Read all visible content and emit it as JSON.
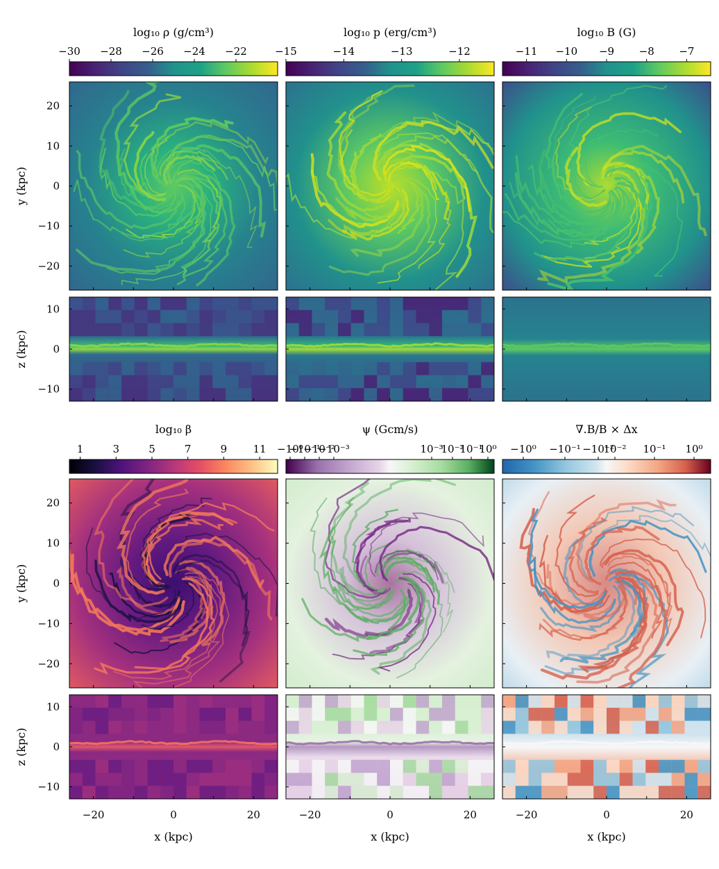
{
  "chart_data": [
    {
      "type": "heatmap",
      "panel": "top-left-face-on",
      "colorbar": {
        "title": "log₁₀ ρ (g/cm³)",
        "colormap": "viridis",
        "range": [
          -30,
          -20
        ],
        "ticks": [
          "−30",
          "−28",
          "−26",
          "−24",
          "−22"
        ],
        "tick_values": [
          -30,
          -28,
          -26,
          -24,
          -22
        ]
      },
      "ylabel": "y (kpc)",
      "xlim": [
        -26,
        26
      ],
      "ylim": [
        -26,
        26
      ],
      "yticks": [
        "20",
        "10",
        "0",
        "−10",
        "−20"
      ],
      "ytick_values": [
        20,
        10,
        0,
        -10,
        -20
      ]
    },
    {
      "type": "heatmap",
      "panel": "top-middle-face-on",
      "colorbar": {
        "title": "log₁₀ p (erg/cm³)",
        "colormap": "viridis",
        "range": [
          -15,
          -11.4
        ],
        "ticks": [
          "−15",
          "−14",
          "−13",
          "−12"
        ],
        "tick_values": [
          -15,
          -14,
          -13,
          -12
        ]
      },
      "xlim": [
        -26,
        26
      ],
      "ylim": [
        -26,
        26
      ]
    },
    {
      "type": "heatmap",
      "panel": "top-right-face-on",
      "colorbar": {
        "title": "log₁₀ B (G)",
        "colormap": "viridis",
        "range": [
          -11.6,
          -6.4
        ],
        "ticks": [
          "−11",
          "−10",
          "−9",
          "−8",
          "−7"
        ],
        "tick_values": [
          -11,
          -10,
          -9,
          -8,
          -7
        ]
      },
      "xlim": [
        -26,
        26
      ],
      "ylim": [
        -26,
        26
      ]
    },
    {
      "type": "heatmap",
      "panel": "row2-edge-on",
      "ylabel": "z (kpc)",
      "ylim": [
        -13,
        13
      ],
      "yticks": [
        "10",
        "0",
        "−10"
      ],
      "ytick_values": [
        10,
        0,
        -10
      ]
    },
    {
      "type": "heatmap",
      "panel": "bottom-left-face-on",
      "colorbar": {
        "title": "log₁₀ β",
        "colormap": "magma",
        "range": [
          0.4,
          12
        ],
        "ticks": [
          "1",
          "3",
          "5",
          "7",
          "9",
          "11"
        ],
        "tick_values": [
          1,
          3,
          5,
          7,
          9,
          11
        ]
      },
      "ylabel": "y (kpc)",
      "xlim": [
        -26,
        26
      ],
      "ylim": [
        -26,
        26
      ],
      "yticks": [
        "20",
        "10",
        "0",
        "−10",
        "−20"
      ],
      "ytick_values": [
        20,
        10,
        0,
        -10,
        -20
      ]
    },
    {
      "type": "heatmap",
      "panel": "bottom-middle-face-on",
      "colorbar": {
        "title": "ψ (Gcm/s)",
        "colormap": "PRGn",
        "scale": "symlog",
        "ticks": [
          "−10⁰",
          "−10⁻¹",
          "−10⁻²",
          "−10⁻³",
          "10⁻³",
          "10⁻²",
          "10⁻¹",
          "10⁰"
        ],
        "tick_fracs": [
          0.02,
          0.09,
          0.16,
          0.23,
          0.7,
          0.8,
          0.89,
          0.97
        ]
      },
      "xlim": [
        -26,
        26
      ],
      "ylim": [
        -26,
        26
      ]
    },
    {
      "type": "heatmap",
      "panel": "bottom-right-face-on",
      "colorbar": {
        "title": "∇.B/B × Δx",
        "colormap": "RdBu_r",
        "scale": "symlog",
        "ticks": [
          "−10⁰",
          "−10⁻¹",
          "−10⁻²",
          "10⁻²",
          "10⁻¹",
          "10⁰"
        ],
        "tick_fracs": [
          0.1,
          0.3,
          0.46,
          0.54,
          0.73,
          0.92
        ]
      },
      "xlim": [
        -26,
        26
      ],
      "ylim": [
        -26,
        26
      ]
    },
    {
      "type": "heatmap",
      "panel": "row4-edge-on",
      "ylabel": "z (kpc)",
      "xlabel": "x (kpc)",
      "ylim": [
        -13,
        13
      ],
      "yticks": [
        "10",
        "0",
        "−10"
      ],
      "ytick_values": [
        10,
        0,
        -10
      ],
      "xticks": [
        "−20",
        "0",
        "20"
      ],
      "xtick_values": [
        -20,
        0,
        20
      ]
    }
  ],
  "labels": {
    "ylabel_faceon": "y (kpc)",
    "ylabel_edgeon": "z (kpc)",
    "xlabel": "x (kpc)"
  }
}
